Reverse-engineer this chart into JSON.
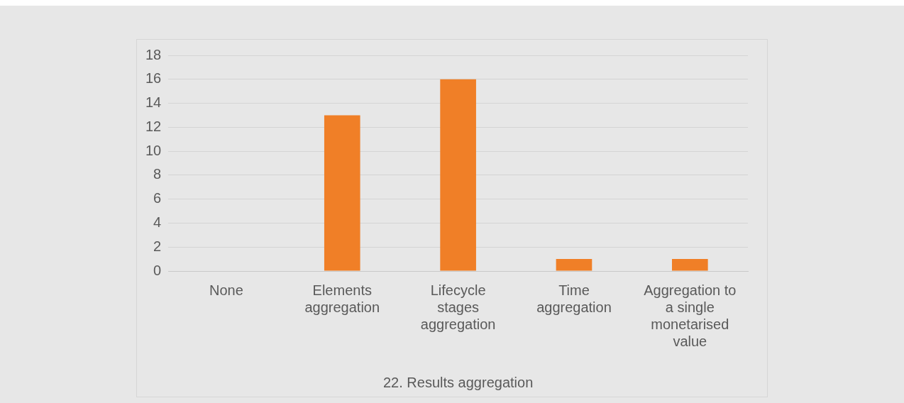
{
  "chart_data": {
    "type": "bar",
    "xlabel": "22. Results aggregation",
    "categories": [
      "None",
      "Elements aggregation",
      "Lifecycle stages aggregation",
      "Time aggregation",
      "Aggregation to a single monetarised value"
    ],
    "values": [
      0,
      13,
      16,
      1,
      1
    ],
    "color": "#f07f27",
    "ylim": [
      0,
      18
    ],
    "yticks": [
      0,
      2,
      4,
      6,
      8,
      10,
      12,
      14,
      16,
      18
    ],
    "grid": "y"
  }
}
